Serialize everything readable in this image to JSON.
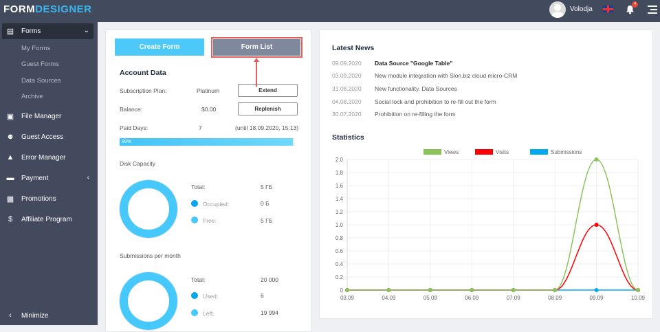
{
  "header": {
    "logo_a": "FORM",
    "logo_b": "DESIGNER",
    "user": "Volodja",
    "notifications": "4",
    "icons": [
      "avatar",
      "uk-flag-icon",
      "bell-icon",
      "menu-icon"
    ]
  },
  "sidebar": {
    "items": [
      {
        "label": "Forms",
        "icon": "forms-icon",
        "active": true
      },
      {
        "label": "File Manager",
        "icon": "folder-icon"
      },
      {
        "label": "Guest Access",
        "icon": "user-circle-icon"
      },
      {
        "label": "Error Manager",
        "icon": "warning-icon"
      },
      {
        "label": "Payment",
        "icon": "card-icon"
      },
      {
        "label": "Promotions",
        "icon": "gift-icon"
      },
      {
        "label": "Affiliate Program",
        "icon": "dollar-icon"
      }
    ],
    "subitems": [
      "My Forms",
      "Guest Forms",
      "Data Sources",
      "Archive"
    ],
    "minimize": "Minimize"
  },
  "actions": {
    "create": "Create Form",
    "list": "Form List"
  },
  "account": {
    "title": "Account Data",
    "plan_label": "Subscription Plan:",
    "plan": "Platinum",
    "extend": "Extend",
    "balance_label": "Balance:",
    "balance": "$0.00",
    "replenish": "Replenish",
    "days_label": "Paid Days:",
    "days": "7",
    "until": "(until 18.09.2020, 15:13)",
    "progress_label": "99%",
    "progress": 99
  },
  "disk": {
    "title": "Disk Capacity",
    "total_label": "Total:",
    "total": "5 ГБ",
    "occupied_label": "Occupied:",
    "occupied": "0 Б",
    "free_label": "Free:",
    "free": "5 ГБ"
  },
  "subs": {
    "title": "Submissions per month",
    "total_label": "Total:",
    "total": "20 000",
    "used_label": "Used:",
    "used": "6",
    "left_label": "Left:",
    "left": "19 994"
  },
  "colors": {
    "occupied": "#0aa5e8",
    "free": "#47c8fb",
    "views": "#8bc35a",
    "visits": "#ff0000",
    "submissions": "#03a9f4"
  },
  "news": {
    "title": "Latest News",
    "items": [
      {
        "date": "09.09.2020",
        "text": "Data Source \"Google Table\""
      },
      {
        "date": "03.09.2020",
        "text": "New module integration with Slon.biz cloud micro-CRM"
      },
      {
        "date": "31.08.2020",
        "text": "New functionality. Data Sources"
      },
      {
        "date": "04.08.2020",
        "text": "Social lock and prohibition to re-fill out the form"
      },
      {
        "date": "30.07.2020",
        "text": "Prohibition on re-filling the form"
      }
    ]
  },
  "statistics": {
    "title": "Statistics"
  },
  "chart_data": {
    "type": "line",
    "legend": "top",
    "grid": true,
    "categories": [
      "03.09",
      "04.09",
      "05.09",
      "06.09",
      "07.09",
      "08.09",
      "09.09",
      "10.09"
    ],
    "ylim": [
      0,
      2.0
    ],
    "yticks": [
      "0",
      "0.2",
      "0.4",
      "0.6",
      "0.8",
      "1.0",
      "1.2",
      "1.4",
      "1.6",
      "1.8",
      "2.0"
    ],
    "series": [
      {
        "name": "Submissions",
        "color": "#03a9f4",
        "values": [
          0,
          0,
          0,
          0,
          0,
          0,
          0,
          0
        ]
      },
      {
        "name": "Visits",
        "color": "#ff0000",
        "values": [
          0,
          0,
          0,
          0,
          0,
          0,
          1,
          0
        ]
      },
      {
        "name": "Views",
        "color": "#8bc35a",
        "values": [
          0,
          0,
          0,
          0,
          0,
          0,
          2,
          0
        ]
      }
    ]
  }
}
